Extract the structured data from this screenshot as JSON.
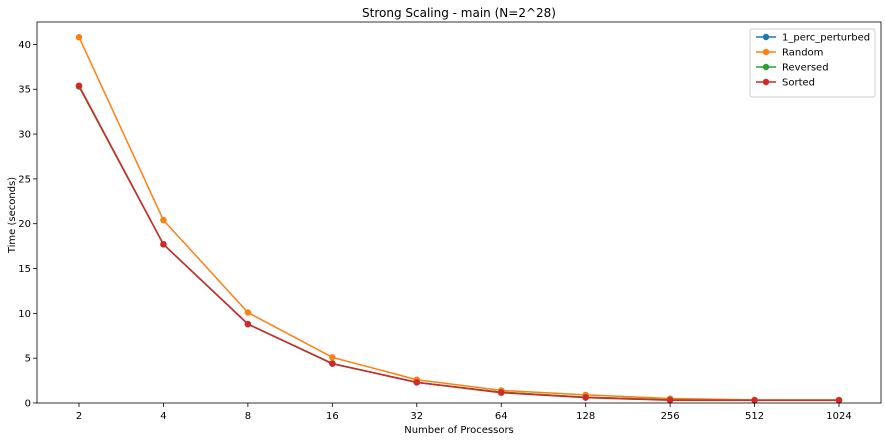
{
  "chart_data": {
    "type": "line",
    "title": "Strong Scaling - main (N=2^28)",
    "xlabel": "Number of Processors",
    "ylabel": "Time (seconds)",
    "categories": [
      "2",
      "4",
      "8",
      "16",
      "32",
      "64",
      "128",
      "256",
      "512",
      "1024"
    ],
    "ylim": [
      0,
      42.5
    ],
    "yticks": [
      0,
      5,
      10,
      15,
      20,
      25,
      30,
      35,
      40
    ],
    "grid": false,
    "legend_position": "top-right",
    "series": [
      {
        "name": "1_perc_perturbed",
        "color": "#1f77b4",
        "values": [
          35.3,
          17.7,
          8.8,
          4.4,
          2.3,
          1.2,
          0.65,
          0.35,
          0.3,
          0.3
        ]
      },
      {
        "name": "Random",
        "color": "#ff7f0e",
        "values": [
          40.8,
          20.4,
          10.1,
          5.1,
          2.6,
          1.4,
          0.9,
          0.5,
          0.35,
          0.35
        ]
      },
      {
        "name": "Reversed",
        "color": "#2ca02c",
        "values": [
          35.3,
          17.7,
          8.8,
          4.4,
          2.3,
          1.2,
          0.65,
          0.35,
          0.3,
          0.3
        ]
      },
      {
        "name": "Sorted",
        "color": "#d62728",
        "values": [
          35.4,
          17.7,
          8.8,
          4.4,
          2.3,
          1.15,
          0.6,
          0.3,
          0.3,
          0.3
        ]
      }
    ]
  }
}
